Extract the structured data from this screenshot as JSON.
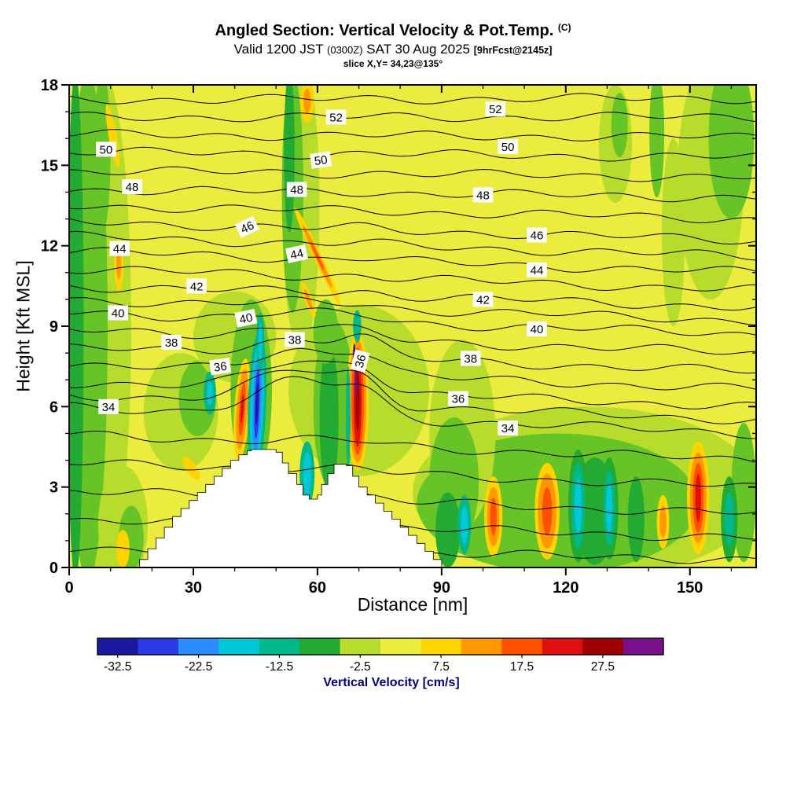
{
  "title": {
    "main": "Angled Section: Vertical Velocity & Pot.Temp.",
    "main_unit": "(C)",
    "valid": {
      "p1": "Valid 1200 JST",
      "p2": "(0300Z)",
      "p3": "SAT 30 Aug 2025",
      "p4": "[9hrFcst@2145z]"
    },
    "slice_line": "slice X,Y= 34,23@135°"
  },
  "axes": {
    "x": {
      "label": "Distance [nm]",
      "range": [
        0,
        166
      ],
      "major_ticks": [
        0,
        30,
        60,
        90,
        120,
        150
      ],
      "minor_step": 10
    },
    "y": {
      "label": "Height [Kft MSL]",
      "range": [
        0,
        18
      ],
      "major_ticks": [
        0,
        3,
        6,
        9,
        12,
        15,
        18
      ],
      "minor_step": 1
    }
  },
  "colorbar": {
    "label": "Vertical Velocity [cm/s]",
    "label_color": "#000080",
    "min": -35,
    "max": 35,
    "step": 5,
    "tick_labels": [
      "-32.5",
      "-22.5",
      "-12.5",
      "-2.5",
      "7.5",
      "17.5",
      "27.5"
    ],
    "colors": [
      "#1a1aa0",
      "#2a3ae8",
      "#2a8cff",
      "#00c8d8",
      "#00b888",
      "#22aa33",
      "#b8dc2c",
      "#ecec3e",
      "#ffd400",
      "#ff9800",
      "#ff5000",
      "#e01010",
      "#a00000",
      "#7a0f8c"
    ]
  },
  "chart_data": {
    "type": "heatmap",
    "title": "Angled Section: Vertical Velocity & Pot.Temp. (C) — Valid 1200 JST (0300Z) SAT 30 Aug 2025 [9hrFcst@2145z], slice X,Y= 34,23@135°",
    "xlabel": "Distance [nm]",
    "ylabel": "Height [Kft MSL]",
    "xlim": [
      0,
      166
    ],
    "ylim": [
      0,
      18
    ],
    "fill_variable": "vertical velocity (cm/s), filled contours",
    "fill_levels": [
      -35,
      -30,
      -25,
      -20,
      -15,
      -10,
      -5,
      0,
      5,
      10,
      15,
      20,
      25,
      30,
      35
    ],
    "fill_colors": [
      "#1a1aa0",
      "#2a3ae8",
      "#2a8cff",
      "#00c8d8",
      "#00b888",
      "#22aa33",
      "#b8dc2c",
      "#ecec3e",
      "#ffd400",
      "#ff9800",
      "#ff5000",
      "#e01010",
      "#a00000",
      "#7a0f8c"
    ],
    "background_fill": "#ecec3e",
    "contour_variable": "potential temperature (C), line contours",
    "contour_interval": 1,
    "contour_labeled_levels": [
      34,
      36,
      38,
      40,
      42,
      44,
      46,
      48,
      50,
      52
    ],
    "contour_levels": [
      [
        29,
        0.75,
        0.3
      ],
      [
        30,
        1.8,
        1.1
      ],
      [
        31,
        2.85,
        2.0
      ],
      [
        32,
        3.9,
        3.0
      ],
      [
        33,
        4.95,
        4.0
      ],
      [
        34,
        6.0,
        5.0
      ],
      [
        35,
        6.45,
        5.5
      ],
      [
        36,
        6.9,
        6.0
      ],
      [
        37,
        7.55,
        6.65
      ],
      [
        38,
        8.2,
        7.3
      ],
      [
        39,
        8.85,
        8.0
      ],
      [
        40,
        9.5,
        8.7
      ],
      [
        41,
        10.0,
        9.2
      ],
      [
        42,
        10.5,
        9.7
      ],
      [
        43,
        11.15,
        10.35
      ],
      [
        44,
        11.8,
        11.0
      ],
      [
        45,
        12.35,
        11.6
      ],
      [
        46,
        12.9,
        12.2
      ],
      [
        47,
        13.5,
        13.0
      ],
      [
        48,
        14.1,
        13.8
      ],
      [
        49,
        14.8,
        14.55
      ],
      [
        50,
        15.5,
        15.3
      ],
      [
        51,
        16.15,
        16.05
      ],
      [
        52,
        16.8,
        16.8
      ],
      [
        53,
        17.45,
        17.5
      ]
    ],
    "contour_labels": [
      [
        "34",
        9.5,
        6.0,
        0
      ],
      [
        "34",
        106,
        5.2,
        0
      ],
      [
        "36",
        36.5,
        7.5,
        -8
      ],
      [
        "36",
        70.3,
        7.7,
        -75
      ],
      [
        "36",
        94,
        6.3,
        0
      ],
      [
        "38",
        24.7,
        8.4,
        0
      ],
      [
        "38",
        54.5,
        8.5,
        0
      ],
      [
        "38",
        97,
        7.8,
        0
      ],
      [
        "40",
        11.8,
        9.5,
        0
      ],
      [
        "40",
        42.7,
        9.3,
        -12
      ],
      [
        "40",
        113,
        8.9,
        0
      ],
      [
        "42",
        30.8,
        10.5,
        0
      ],
      [
        "42",
        100,
        10.0,
        0
      ],
      [
        "44",
        12.2,
        11.9,
        0
      ],
      [
        "44",
        55,
        11.7,
        -12
      ],
      [
        "44",
        113,
        11.1,
        0
      ],
      [
        "46",
        43,
        12.7,
        -25
      ],
      [
        "46",
        113,
        12.4,
        0
      ],
      [
        "48",
        15.2,
        14.2,
        0
      ],
      [
        "48",
        55,
        14.1,
        0
      ],
      [
        "48",
        100,
        13.9,
        0
      ],
      [
        "50",
        8.9,
        15.6,
        0
      ],
      [
        "50",
        60.8,
        15.2,
        -8
      ],
      [
        "50",
        106,
        15.7,
        0
      ],
      [
        "52",
        64.5,
        16.8,
        0
      ],
      [
        "52",
        103,
        17.1,
        0
      ]
    ],
    "terrain_profile": [
      [
        17,
        0.3
      ],
      [
        19,
        0.7
      ],
      [
        21,
        1.1
      ],
      [
        23,
        1.5
      ],
      [
        25,
        1.9
      ],
      [
        27,
        2.2
      ],
      [
        29,
        2.5
      ],
      [
        31,
        2.8
      ],
      [
        33,
        3.1
      ],
      [
        35,
        3.4
      ],
      [
        37,
        3.7
      ],
      [
        39,
        4.0
      ],
      [
        41,
        4.2
      ],
      [
        43,
        4.35
      ],
      [
        44,
        4.4
      ],
      [
        50,
        4.3
      ],
      [
        51.5,
        3.9
      ],
      [
        53,
        3.5
      ],
      [
        55,
        3.1
      ],
      [
        56.5,
        2.7
      ],
      [
        58,
        2.55
      ],
      [
        60,
        2.7
      ],
      [
        61,
        3.1
      ],
      [
        62.5,
        3.5
      ],
      [
        64,
        3.85
      ],
      [
        67,
        3.8
      ],
      [
        68.5,
        3.4
      ],
      [
        70,
        3.0
      ],
      [
        72,
        2.7
      ],
      [
        74,
        2.4
      ],
      [
        76,
        2.1
      ],
      [
        78,
        1.8
      ],
      [
        80,
        1.5
      ],
      [
        82,
        1.2
      ],
      [
        84,
        0.9
      ],
      [
        86,
        0.6
      ],
      [
        88,
        0.3
      ],
      [
        90,
        0
      ]
    ],
    "green_patches": [
      [
        8,
        9,
        7,
        9.5,
        "#b8dc2c"
      ],
      [
        4.5,
        9,
        4.8,
        9.5,
        "#66c426"
      ],
      [
        1.5,
        9,
        2.0,
        9.5,
        "#22aa33"
      ],
      [
        8,
        15.5,
        2,
        3,
        "#66c426"
      ],
      [
        27,
        5.8,
        9,
        2.2,
        "#b8dc2c"
      ],
      [
        31,
        6.3,
        4.5,
        1.4,
        "#66c426"
      ],
      [
        13,
        1.6,
        6,
        2.2,
        "#b8dc2c"
      ],
      [
        15,
        1.1,
        3,
        1.2,
        "#66c426"
      ],
      [
        40,
        8.6,
        10,
        1.7,
        "#b8dc2c"
      ],
      [
        44,
        6.6,
        5,
        3.4,
        "#66c426"
      ],
      [
        56,
        13.5,
        4.5,
        5.5,
        "#b8dc2c"
      ],
      [
        54,
        14,
        2.6,
        4.5,
        "#66c426"
      ],
      [
        53.2,
        15.5,
        1.3,
        3,
        "#22aa33"
      ],
      [
        70,
        6.6,
        17,
        3.2,
        "#b8dc2c"
      ],
      [
        64,
        6,
        5,
        3.2,
        "#66c426"
      ],
      [
        62.8,
        5.6,
        2.3,
        2.8,
        "#22aa33"
      ],
      [
        62,
        8.8,
        3,
        1.2,
        "#66c426"
      ],
      [
        125,
        2.8,
        42,
        3.2,
        "#b8dc2c"
      ],
      [
        118,
        2.4,
        34,
        2.6,
        "#66c426"
      ],
      [
        95,
        5,
        8,
        3.5,
        "#b8dc2c"
      ],
      [
        93,
        3.2,
        6,
        2.4,
        "#66c426"
      ],
      [
        91.5,
        1.4,
        3,
        1.4,
        "#22aa33"
      ],
      [
        127,
        2.1,
        5,
        2.0,
        "#22aa33"
      ],
      [
        137,
        1.8,
        2,
        1.6,
        "#22aa33"
      ],
      [
        155,
        14.5,
        8,
        4.5,
        "#b8dc2c"
      ],
      [
        160,
        16,
        5.5,
        3,
        "#66c426"
      ],
      [
        132,
        15.8,
        4,
        2.2,
        "#b8dc2c"
      ],
      [
        133,
        16.5,
        2,
        1.2,
        "#66c426"
      ],
      [
        146,
        12.5,
        2.8,
        3.5,
        "#b8dc2c"
      ],
      [
        142,
        16.2,
        1.8,
        2.4,
        "#66c426"
      ],
      [
        163,
        2.8,
        3,
        2.6,
        "#66c426"
      ]
    ],
    "features": [
      {
        "x": 41.8,
        "y": 5.9,
        "r": 4,
        "L": [
          [
            "#ffd400",
            1.9,
            1.9
          ],
          [
            "#ff9800",
            1.3,
            1.5
          ],
          [
            "#ff5000",
            0.7,
            1.0
          ],
          [
            "#e01010",
            0.35,
            0.55
          ]
        ]
      },
      {
        "x": 45.4,
        "y": 6.1,
        "r": 2,
        "L": [
          [
            "#00b888",
            2.2,
            2.7
          ],
          [
            "#00c8d8",
            1.6,
            2.3
          ],
          [
            "#2a8cff",
            1.0,
            1.8
          ],
          [
            "#2a3ae8",
            0.6,
            1.3
          ],
          [
            "#1a1aa0",
            0.32,
            0.8
          ]
        ]
      },
      {
        "x": 46.2,
        "y": 8.4,
        "r": 0,
        "L": [
          [
            "#00b888",
            1.0,
            1.1
          ],
          [
            "#00c8d8",
            0.55,
            0.7
          ]
        ]
      },
      {
        "x": 57.5,
        "y": 3.5,
        "r": 0,
        "L": [
          [
            "#00b888",
            1.8,
            1.2
          ],
          [
            "#00c8d8",
            1.0,
            0.8
          ]
        ]
      },
      {
        "x": 69.7,
        "y": 6.2,
        "r": 0,
        "L": [
          [
            "#ffd400",
            2.7,
            2.6
          ],
          [
            "#ff9800",
            2.1,
            2.3
          ],
          [
            "#ff5000",
            1.5,
            2.0
          ],
          [
            "#e01010",
            0.95,
            1.7
          ],
          [
            "#a00000",
            0.5,
            1.1
          ]
        ]
      },
      {
        "x": 69.3,
        "y": 6.9,
        "r": 0,
        "L": [
          [
            "#7a0f8c",
            0.3,
            0.5
          ]
        ]
      },
      {
        "x": 68.9,
        "y": 7.9,
        "r": 0,
        "L": [
          [
            "#1a1aa0",
            0.3,
            0.45
          ]
        ]
      },
      {
        "x": 69.6,
        "y": 9.0,
        "r": 0,
        "L": [
          [
            "#00b888",
            1.0,
            0.6
          ]
        ]
      },
      {
        "x": 67.4,
        "y": 5.6,
        "r": 0,
        "L": [
          [
            "#00b888",
            0.55,
            1.9
          ]
        ]
      },
      {
        "x": 60.0,
        "y": 11.6,
        "r": -25,
        "L": [
          [
            "#ffd400",
            1.0,
            2.0
          ],
          [
            "#ff9800",
            0.6,
            1.3
          ],
          [
            "#ff5000",
            0.3,
            0.6
          ]
        ]
      },
      {
        "x": 57.8,
        "y": 10.0,
        "r": -20,
        "L": [
          [
            "#ffd400",
            0.9,
            0.7
          ],
          [
            "#ff9800",
            0.5,
            0.4
          ]
        ]
      },
      {
        "x": 57.5,
        "y": 17.4,
        "r": 0,
        "L": [
          [
            "#ffd400",
            1.7,
            0.8
          ],
          [
            "#ff9800",
            0.9,
            0.45
          ]
        ]
      },
      {
        "x": 12,
        "y": 11.3,
        "r": 0,
        "L": [
          [
            "#ffd400",
            1.1,
            1.0
          ],
          [
            "#ff9800",
            0.6,
            0.55
          ]
        ]
      },
      {
        "x": 10.5,
        "y": 16.1,
        "r": -10,
        "L": [
          [
            "#ffd400",
            1.0,
            1.2
          ]
        ]
      },
      {
        "x": 29.5,
        "y": 3.7,
        "r": -35,
        "L": [
          [
            "#ffd400",
            1.3,
            0.5
          ]
        ]
      },
      {
        "x": 13,
        "y": 0.7,
        "r": 0,
        "L": [
          [
            "#ffd400",
            1.6,
            0.7
          ]
        ]
      },
      {
        "x": 34,
        "y": 6.5,
        "r": 0,
        "L": [
          [
            "#00b888",
            1.5,
            0.8
          ],
          [
            "#00c8d8",
            0.7,
            0.45
          ]
        ]
      },
      {
        "x": 95.5,
        "y": 1.6,
        "r": 0,
        "L": [
          [
            "#00b888",
            1.6,
            1.1
          ],
          [
            "#00c8d8",
            0.9,
            0.7
          ]
        ]
      },
      {
        "x": 102.5,
        "y": 1.9,
        "r": 0,
        "L": [
          [
            "#ffd400",
            2.2,
            1.5
          ],
          [
            "#ff9800",
            1.5,
            1.1
          ],
          [
            "#ff5000",
            0.8,
            0.7
          ]
        ]
      },
      {
        "x": 115.5,
        "y": 2.1,
        "r": 0,
        "L": [
          [
            "#ffd400",
            3.0,
            1.8
          ],
          [
            "#ff9800",
            2.2,
            1.4
          ],
          [
            "#ff5000",
            1.2,
            0.9
          ]
        ]
      },
      {
        "x": 123,
        "y": 2.3,
        "r": 0,
        "L": [
          [
            "#22aa33",
            2.4,
            2.1
          ],
          [
            "#00b888",
            1.6,
            1.6
          ],
          [
            "#00c8d8",
            0.9,
            1.0
          ]
        ]
      },
      {
        "x": 130.5,
        "y": 2.2,
        "r": 0,
        "L": [
          [
            "#22aa33",
            2.2,
            1.9
          ],
          [
            "#00b888",
            1.4,
            1.4
          ],
          [
            "#00c8d8",
            0.8,
            0.9
          ]
        ]
      },
      {
        "x": 143.5,
        "y": 1.7,
        "r": 0,
        "L": [
          [
            "#ffd400",
            1.5,
            1.0
          ],
          [
            "#ff9800",
            0.8,
            0.6
          ]
        ]
      },
      {
        "x": 152,
        "y": 2.6,
        "r": 0,
        "L": [
          [
            "#ffd400",
            2.7,
            2.1
          ],
          [
            "#ff9800",
            2.0,
            1.7
          ],
          [
            "#ff5000",
            1.3,
            1.3
          ],
          [
            "#e01010",
            0.7,
            0.9
          ]
        ]
      },
      {
        "x": 159.5,
        "y": 1.8,
        "r": 0,
        "L": [
          [
            "#22aa33",
            2.0,
            1.6
          ],
          [
            "#00b888",
            1.2,
            1.0
          ]
        ]
      }
    ]
  }
}
